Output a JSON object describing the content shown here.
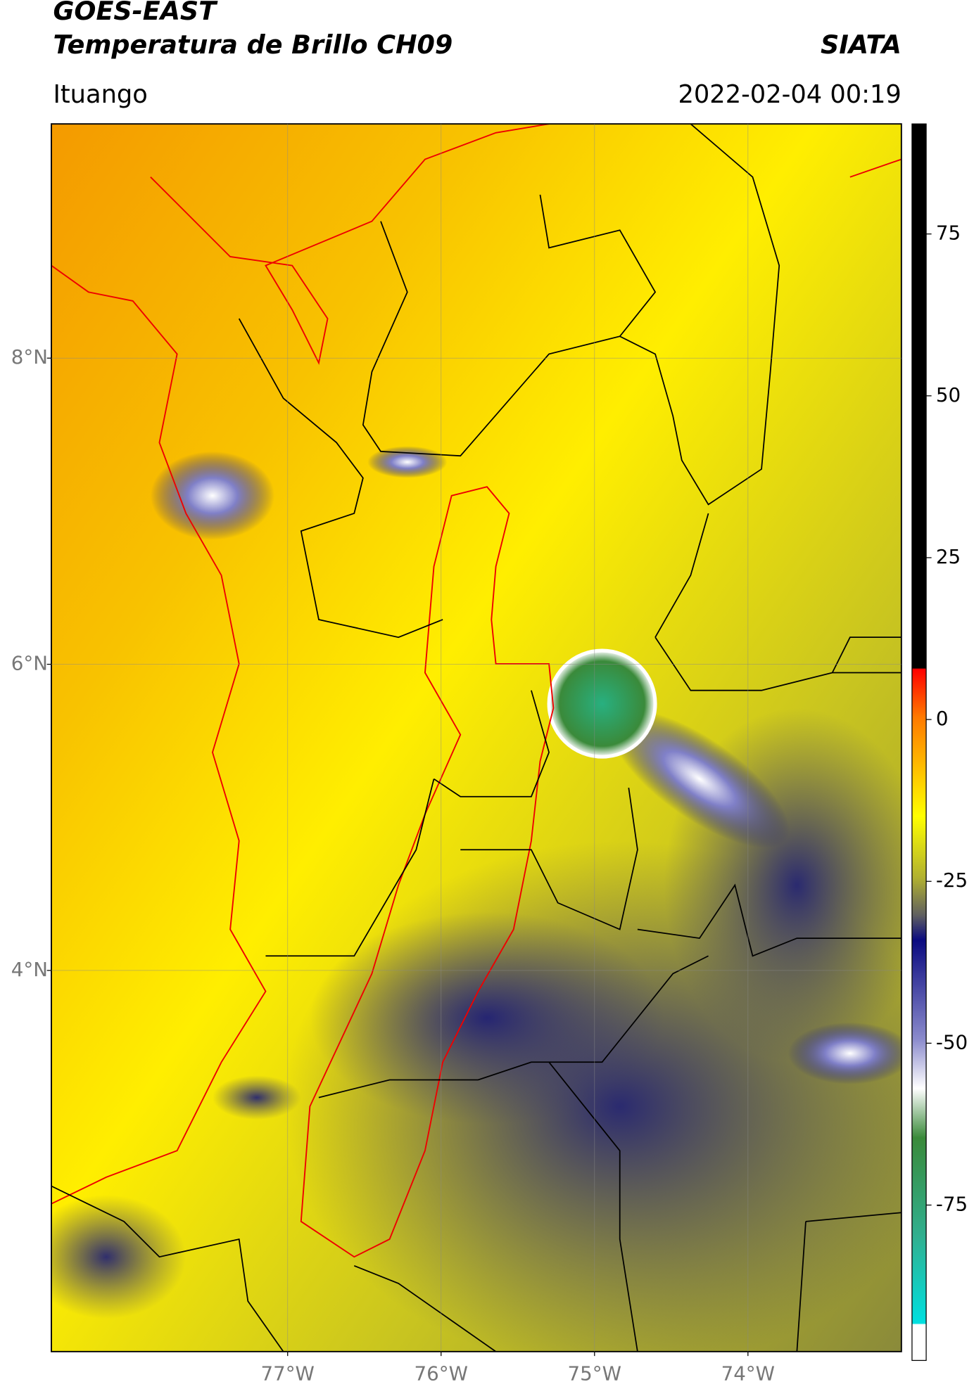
{
  "header": {
    "satellite": "GOES-EAST",
    "product": "Temperatura de Brillo CH09",
    "source": "SIATA",
    "location": "Ituango",
    "datetime": "2022-02-04 00:19"
  },
  "map": {
    "lonlim": [
      -78.54,
      -73.0
    ],
    "latlim": [
      1.51,
      9.53
    ],
    "lat_ticks": [
      {
        "value": 8,
        "label": "8°N"
      },
      {
        "value": 6,
        "label": "6°N"
      },
      {
        "value": 4,
        "label": "4°N"
      }
    ],
    "lon_ticks": [
      {
        "value": -77,
        "label": "77°W"
      },
      {
        "value": -76,
        "label": "76°W"
      },
      {
        "value": -75,
        "label": "75°W"
      },
      {
        "value": -74,
        "label": "74°W"
      }
    ],
    "grid": true
  },
  "colorbar": {
    "lim": [
      -99,
      92
    ],
    "ticks": [
      75,
      50,
      25,
      0,
      -25,
      -50,
      -75
    ]
  }
}
